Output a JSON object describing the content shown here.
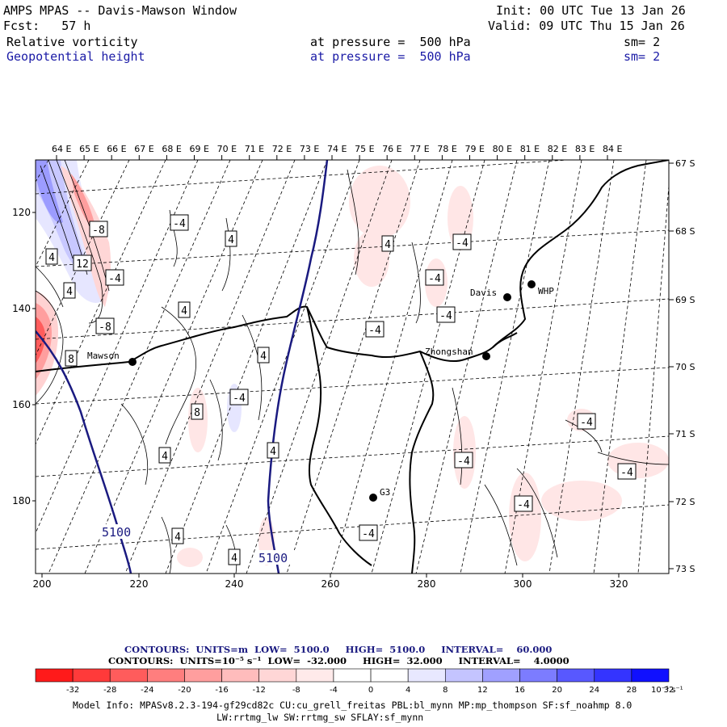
{
  "header": {
    "title": "AMPS MPAS -- Davis-Mawson Window",
    "init": "Init: 00 UTC Tue 13 Jan 26",
    "fcst": "Fcst:   57 h",
    "valid": "Valid: 09 UTC Thu 15 Jan 26",
    "field1": {
      "name": "Relative vorticity",
      "pressure": "at pressure =  500 hPa",
      "sm": "sm= 2"
    },
    "field2": {
      "name": "Geopotential height",
      "pressure": "at pressure =  500 hPa",
      "sm": "sm= 2"
    }
  },
  "map": {
    "top_lon_labels": [
      "64 E",
      "65 E",
      "66 E",
      "67 E",
      "68 E",
      "69 E",
      "70 E",
      "71 E",
      "72 E",
      "73 E",
      "74 E",
      "75 E",
      "76 E",
      "77 E",
      "78 E",
      "79 E",
      "80 E",
      "81 E",
      "82 E",
      "83 E",
      "84 E"
    ],
    "right_lat_labels": [
      "67 S",
      "68 S",
      "69 S",
      "70 S",
      "71 S",
      "72 S",
      "73 S"
    ],
    "left_grid_labels": [
      "120",
      "140",
      "160",
      "180"
    ],
    "bottom_grid_labels": [
      "200",
      "220",
      "240",
      "260",
      "280",
      "300",
      "320"
    ],
    "stations": [
      {
        "name": "Mawson"
      },
      {
        "name": "Davis"
      },
      {
        "name": "WHP"
      },
      {
        "name": "Zhongshan"
      },
      {
        "name": "G3"
      }
    ],
    "height_labels": [
      "5100",
      "5100"
    ],
    "vort_labels": [
      "-8",
      "-4",
      "4",
      "12",
      "4",
      "-4",
      "-8",
      "8",
      "4",
      "4",
      "4",
      "-4",
      "8",
      "4",
      "4",
      "4",
      "4",
      "4",
      "-4",
      "-4",
      "-4",
      "-4",
      "-4",
      "-4",
      "-4",
      "-4",
      "-4",
      "-4"
    ]
  },
  "contour_info": {
    "line1": "CONTOURS:  UNITS=m  LOW=  5100.0     HIGH=  5100.0     INTERVAL=    60.000",
    "line2": "CONTOURS:  UNITS=10⁻⁵ s⁻¹  LOW=  -32.000     HIGH=  32.000     INTERVAL=    4.0000"
  },
  "colorbar": {
    "colors": [
      "#ff1a1a",
      "#ff3a3a",
      "#ff5c5c",
      "#ff7e7e",
      "#ff9e9e",
      "#ffbcbc",
      "#ffd6d6",
      "#ffeaea",
      "#ffffff",
      "#ffffff",
      "#e8e8ff",
      "#c4c4ff",
      "#a0a0ff",
      "#7c7cff",
      "#5858ff",
      "#3434ff",
      "#1010ff"
    ],
    "tick_labels": [
      "-32",
      "-28",
      "-24",
      "-20",
      "-16",
      "-12",
      "-8",
      "-4",
      "0",
      "4",
      "8",
      "12",
      "16",
      "20",
      "24",
      "28",
      "32"
    ],
    "units": "10⁻⁵ s⁻¹"
  },
  "footer": {
    "line1": "Model Info: MPASv8.2.3-194-gf29cd82c CU:cu_grell_freitas PBL:bl_mynn MP:mp_thompson SF:sf_noahmp 8.0",
    "line2": "LW:rrtmg_lw SW:rrtmg_sw SFLAY:sf_mynn"
  }
}
